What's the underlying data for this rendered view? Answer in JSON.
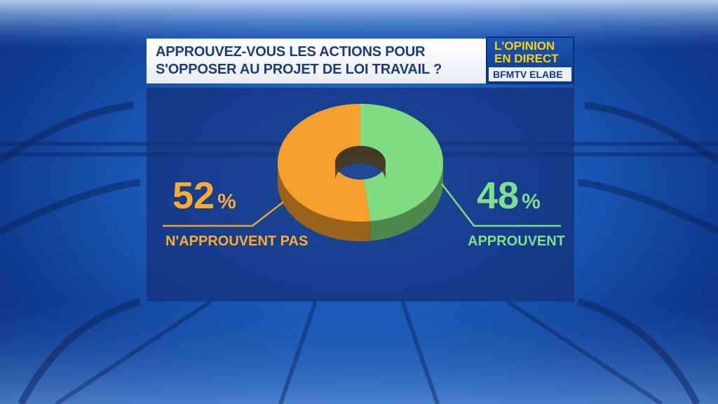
{
  "title_lines": [
    "APPROUVEZ-VOUS LES ACTIONS POUR",
    "S'OPPOSER AU PROJET DE LOI TRAVAIL ?"
  ],
  "logo": {
    "line1": "L'OPINION",
    "line2": "EN DIRECT",
    "line3": "BFMTV ELABE",
    "colors": {
      "text": "#ffd200",
      "band": "#0d3b8a"
    }
  },
  "chart_data": {
    "type": "pie",
    "style": "3d-donut",
    "title": "APPROUVEZ-VOUS LES ACTIONS POUR S'OPPOSER AU PROJET DE LOI TRAVAIL ?",
    "unit": "%",
    "categories": [
      "N'APPROUVENT PAS",
      "APPROUVENT"
    ],
    "values": [
      52,
      48
    ],
    "colors": [
      "#f5a02c",
      "#7fdc80"
    ],
    "labels": [
      {
        "value_text": "52",
        "sign": "%",
        "text": "N'APPROUVENT PAS"
      },
      {
        "value_text": "48",
        "sign": "%",
        "text": "APPROUVENT"
      }
    ]
  }
}
